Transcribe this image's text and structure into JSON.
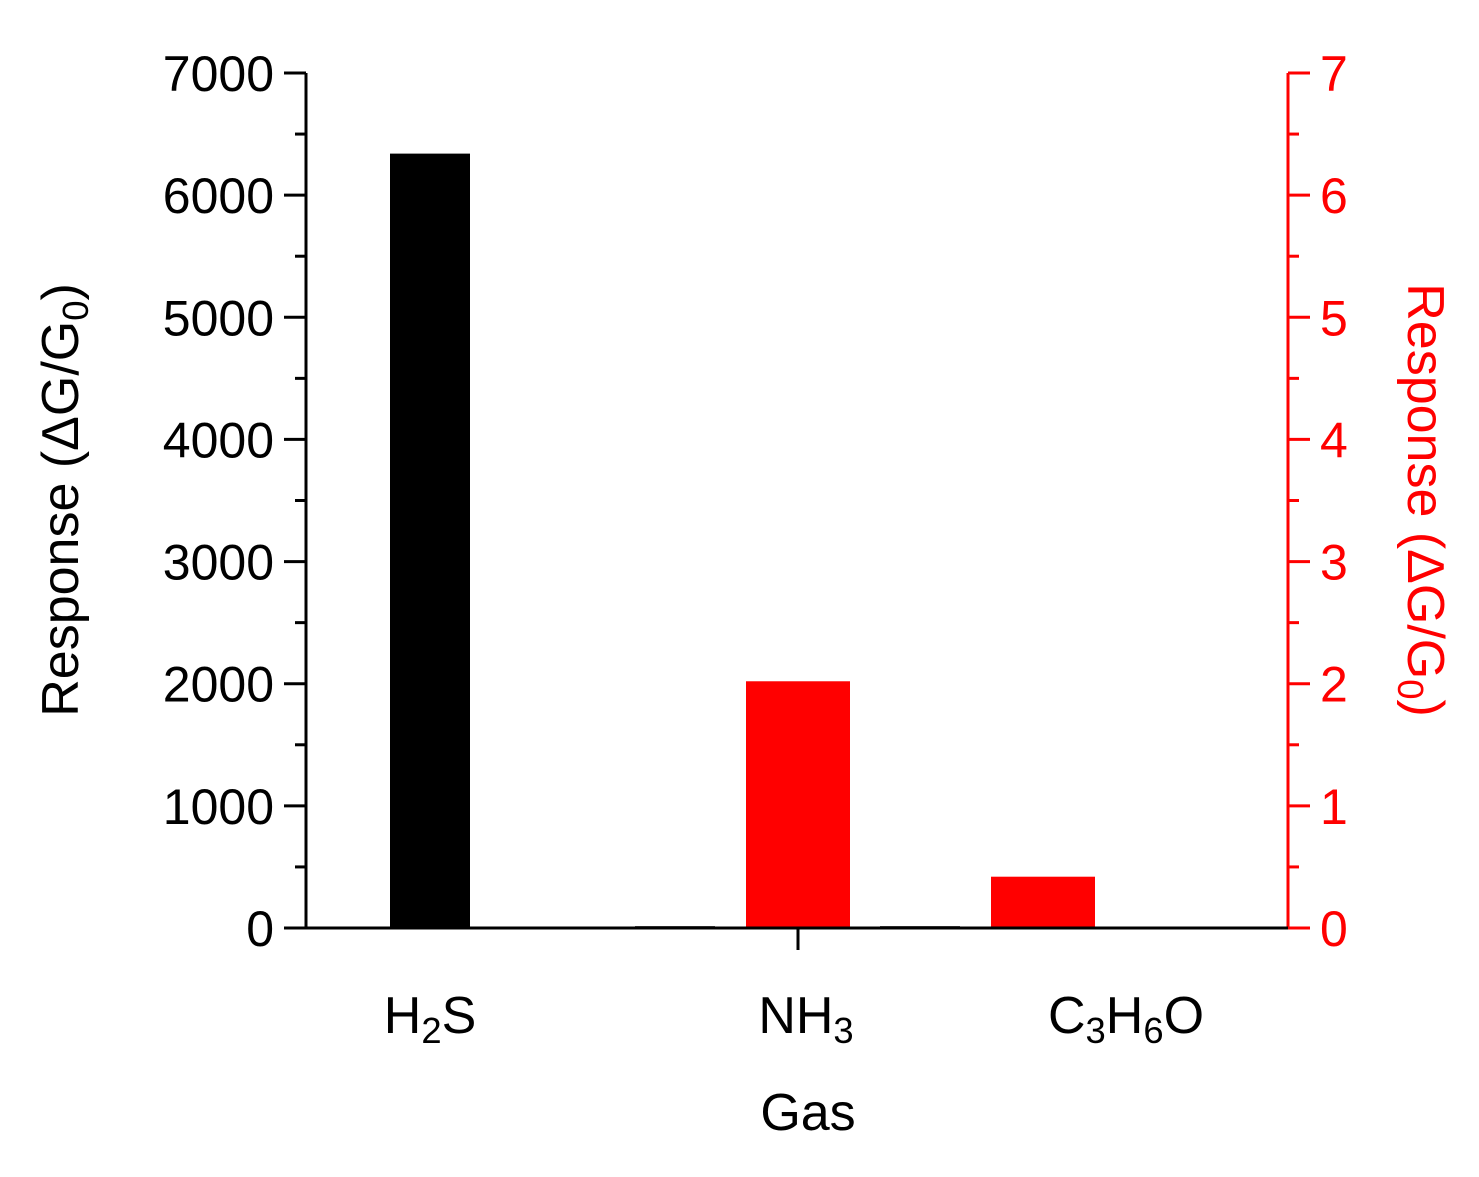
{
  "chart_data": {
    "type": "bar",
    "categories": [
      "H2S",
      "NH3",
      "C3H6O"
    ],
    "category_display": [
      [
        {
          "t": "H",
          "sub": false
        },
        {
          "t": "2",
          "sub": true
        },
        {
          "t": "S",
          "sub": false
        }
      ],
      [
        {
          "t": "NH",
          "sub": false
        },
        {
          "t": "3",
          "sub": true
        }
      ],
      [
        {
          "t": "C",
          "sub": false
        },
        {
          "t": "3",
          "sub": true
        },
        {
          "t": "H",
          "sub": false
        },
        {
          "t": "6",
          "sub": true
        },
        {
          "t": "O",
          "sub": false
        }
      ]
    ],
    "xlabel": "Gas",
    "ylabel_left": "Response (ΔG/G0)",
    "ylabel_right": "Response (ΔG/G0)",
    "ylabel_parts": [
      {
        "t": "Response (ΔG/G",
        "sub": false
      },
      {
        "t": "0",
        "sub": true
      },
      {
        "t": ")",
        "sub": false
      }
    ],
    "ylim_left": [
      0,
      7000
    ],
    "ylim_right": [
      0,
      7
    ],
    "yticks_left": [
      0,
      1000,
      2000,
      3000,
      4000,
      5000,
      6000,
      7000
    ],
    "yticks_right": [
      0,
      1,
      2,
      3,
      4,
      5,
      6,
      7
    ],
    "series": [
      {
        "axis": "left",
        "color": "#000000",
        "values": [
          6340,
          15,
          15
        ]
      },
      {
        "axis": "right",
        "color": "#ff0000",
        "values": [
          0,
          2.02,
          0.42
        ]
      }
    ],
    "grid": false,
    "legend": "none"
  },
  "colors": {
    "left_axis": "#000000",
    "right_axis": "#ff0000"
  }
}
